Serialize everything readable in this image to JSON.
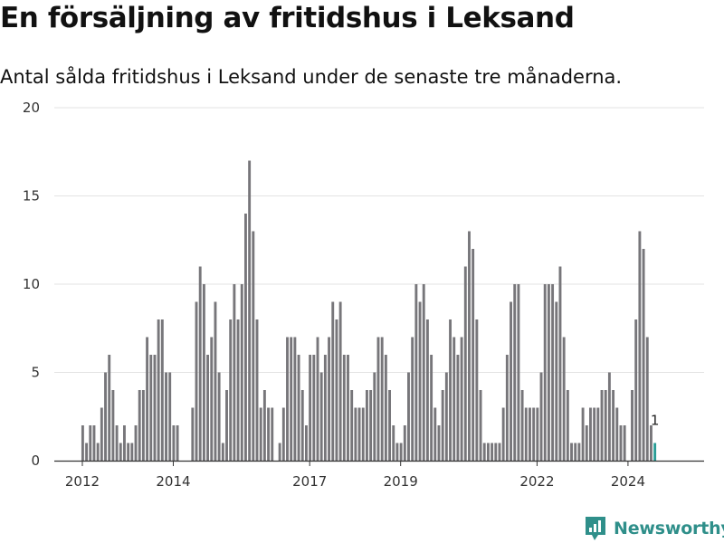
{
  "header": {
    "title": "En försäljning av fritidshus i Leksand",
    "subtitle": "Antal sålda fritidshus i Leksand under de senaste tre månaderna."
  },
  "brand": {
    "name": "Newsworthy",
    "icon": "newsworthy-logo-icon",
    "color": "#2f8f8a"
  },
  "chart_data": {
    "type": "bar",
    "ylim": [
      0,
      20
    ],
    "yticks": [
      0,
      5,
      10,
      15,
      20
    ],
    "x_start": "2012-01",
    "x_end": "2025-01",
    "xticks": [
      {
        "label": "2012",
        "year": 2012
      },
      {
        "label": "2014",
        "year": 2014
      },
      {
        "label": "2017",
        "year": 2017
      },
      {
        "label": "2019",
        "year": 2019
      },
      {
        "label": "2022",
        "year": 2022
      },
      {
        "label": "2024",
        "year": 2024
      }
    ],
    "grid": true,
    "bar_color": "#77767a",
    "highlight_color": "#2a9d96",
    "highlight_label": "1",
    "start_month": "2012-01",
    "values": [
      2,
      1,
      2,
      2,
      1,
      3,
      5,
      6,
      4,
      2,
      1,
      2,
      1,
      1,
      2,
      4,
      4,
      7,
      6,
      6,
      8,
      8,
      5,
      5,
      2,
      2,
      0,
      0,
      0,
      3,
      9,
      11,
      10,
      6,
      7,
      9,
      5,
      1,
      4,
      8,
      10,
      8,
      10,
      14,
      17,
      13,
      8,
      3,
      4,
      3,
      3,
      0,
      1,
      3,
      7,
      7,
      7,
      6,
      4,
      2,
      6,
      6,
      7,
      5,
      6,
      7,
      9,
      8,
      9,
      6,
      6,
      4,
      3,
      3,
      3,
      4,
      4,
      5,
      7,
      7,
      6,
      4,
      2,
      1,
      1,
      2,
      5,
      7,
      10,
      9,
      10,
      8,
      6,
      3,
      2,
      4,
      5,
      8,
      7,
      6,
      7,
      11,
      13,
      12,
      8,
      4,
      1,
      1,
      1,
      1,
      1,
      3,
      6,
      9,
      10,
      10,
      4,
      3,
      3,
      3,
      3,
      5,
      10,
      10,
      10,
      9,
      11,
      7,
      4,
      1,
      1,
      1,
      3,
      2,
      3,
      3,
      3,
      4,
      4,
      5,
      4,
      3,
      2,
      2,
      0,
      4,
      8,
      13,
      12,
      7,
      2,
      1
    ]
  }
}
